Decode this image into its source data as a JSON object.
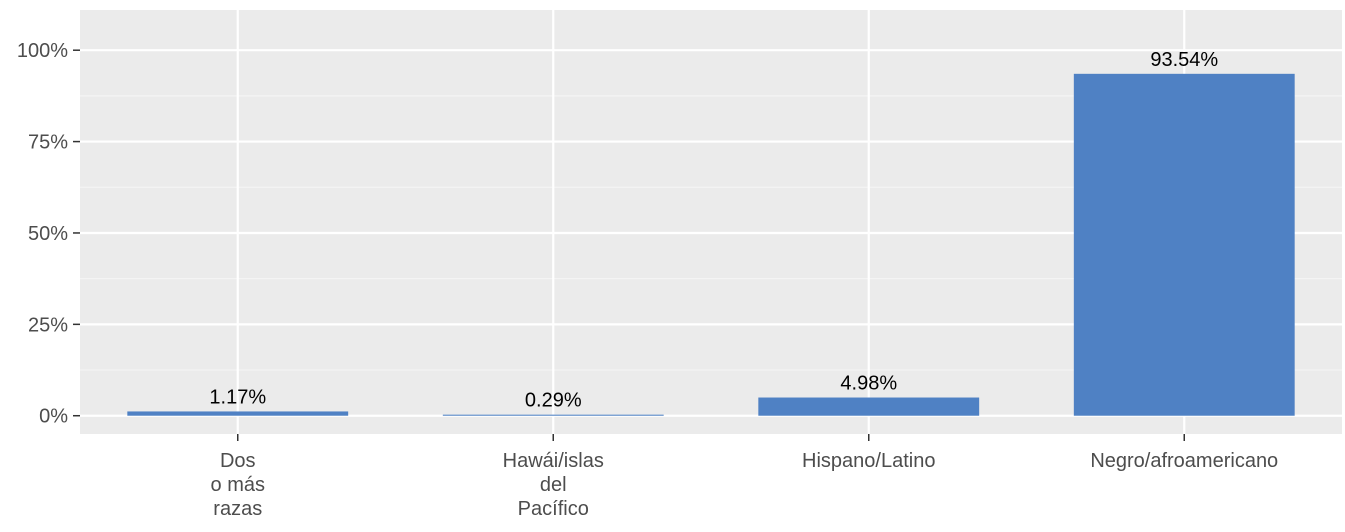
{
  "chart_data": {
    "type": "bar",
    "categories": [
      [
        "Dos",
        "o más",
        "razas"
      ],
      [
        "Hawái/islas",
        "del",
        "Pacífico"
      ],
      [
        "Hispano/Latino"
      ],
      [
        "Negro/afroamericano"
      ]
    ],
    "values": [
      1.17,
      0.29,
      4.98,
      93.54
    ],
    "value_labels": [
      "1.17%",
      "0.29%",
      "4.98%",
      "93.54%"
    ],
    "y_ticks": [
      0,
      25,
      50,
      75,
      100
    ],
    "y_tick_labels": [
      "0%",
      "25%",
      "50%",
      "75%",
      "100%"
    ],
    "ylim": [
      -5,
      111
    ],
    "grid": true,
    "legend": "none",
    "colors": {
      "bar": "#4f81c4",
      "panel_background": "#ebebeb",
      "grid_major": "#ffffff",
      "grid_minor": "#f4f4f4",
      "text": "#000000",
      "tick_text": "#4d4d4d"
    }
  }
}
